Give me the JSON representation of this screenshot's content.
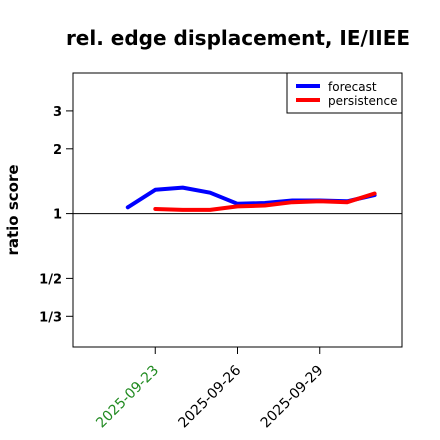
{
  "chart_data": {
    "type": "line",
    "title": "rel. edge displacement, IE/IIEE",
    "xlabel": "",
    "ylabel": "ratio score",
    "y_scale": "log",
    "y_ticks": [
      {
        "value": 0.3333,
        "label": "1/3"
      },
      {
        "value": 0.5,
        "label": "1/2"
      },
      {
        "value": 1,
        "label": "1"
      },
      {
        "value": 2,
        "label": "2"
      },
      {
        "value": 3,
        "label": "3"
      }
    ],
    "ylim": [
      0.24,
      4.5
    ],
    "xlim": [
      "2025-09-20",
      "2025-10-02"
    ],
    "x_ticks": [
      {
        "value": "2025-09-23",
        "label": "2025-09-23",
        "color": "#228b22"
      },
      {
        "value": "2025-09-26",
        "label": "2025-09-26",
        "color": "#000000"
      },
      {
        "value": "2025-09-29",
        "label": "2025-09-29",
        "color": "#000000"
      }
    ],
    "reference_line": 1,
    "legend_position": "top-right",
    "series": [
      {
        "name": "forecast",
        "color": "#0000ff",
        "points": [
          {
            "x": "2025-09-22",
            "y": 1.07
          },
          {
            "x": "2025-09-23",
            "y": 1.29
          },
          {
            "x": "2025-09-24",
            "y": 1.32
          },
          {
            "x": "2025-09-25",
            "y": 1.25
          },
          {
            "x": "2025-09-26",
            "y": 1.11
          },
          {
            "x": "2025-09-27",
            "y": 1.12
          },
          {
            "x": "2025-09-28",
            "y": 1.15
          },
          {
            "x": "2025-09-29",
            "y": 1.15
          },
          {
            "x": "2025-09-30",
            "y": 1.14
          },
          {
            "x": "2025-10-01",
            "y": 1.22
          }
        ]
      },
      {
        "name": "persistence",
        "color": "#ff0000",
        "points": [
          {
            "x": "2025-09-23",
            "y": 1.05
          },
          {
            "x": "2025-09-24",
            "y": 1.04
          },
          {
            "x": "2025-09-25",
            "y": 1.04
          },
          {
            "x": "2025-09-26",
            "y": 1.08
          },
          {
            "x": "2025-09-27",
            "y": 1.09
          },
          {
            "x": "2025-09-28",
            "y": 1.13
          },
          {
            "x": "2025-09-29",
            "y": 1.14
          },
          {
            "x": "2025-09-30",
            "y": 1.13
          },
          {
            "x": "2025-10-01",
            "y": 1.24
          }
        ]
      }
    ]
  }
}
